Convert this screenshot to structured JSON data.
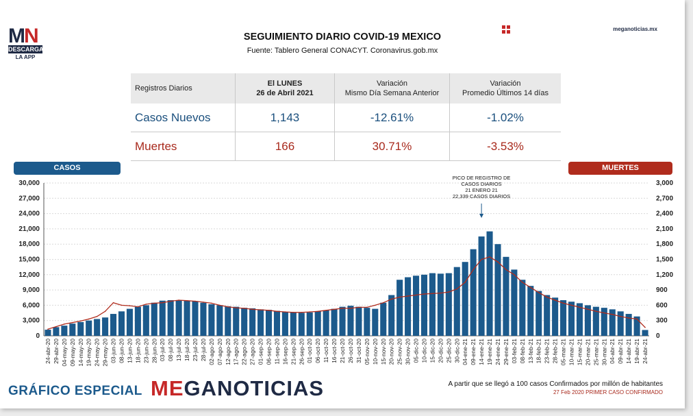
{
  "logo": {
    "mn": "MN",
    "descarga": "DESCARGA",
    "app": "LA APP"
  },
  "header": {
    "title": "SEGUIMIENTO DIARIO COVID-19 MEXICO",
    "subtitle": "Fuente: Tablero General CONACYT. Coronavirus.gob.mx",
    "site": "meganoticias.mx"
  },
  "table": {
    "headers": [
      "Registros Diarios",
      "El LUNES",
      "26 de Abril 2021",
      "Variación",
      "Mismo Día Semana Anterior",
      "Variación",
      "Promedio Últimos 14 días"
    ],
    "rows": [
      {
        "label": "Casos Nuevos",
        "value": "1,143",
        "var_week": "-12.61%",
        "var_14": "-1.02%"
      },
      {
        "label": "Muertes",
        "value": "166",
        "var_week": "30.71%",
        "var_14": "-3.53%"
      }
    ]
  },
  "chart_data": {
    "type": "bar",
    "legend_left": "CASOS",
    "legend_right": "MUERTES",
    "ylim_left": [
      0,
      30000
    ],
    "ylim_right": [
      0,
      3000
    ],
    "yticks_left": [
      "0",
      "3,000",
      "6,000",
      "9,000",
      "12,000",
      "15,000",
      "18,000",
      "21,000",
      "24,000",
      "27,000",
      "30,000"
    ],
    "yticks_right": [
      "0",
      "300",
      "600",
      "900",
      "1,200",
      "1,500",
      "1,800",
      "2,100",
      "2,400",
      "2,700",
      "3,000"
    ],
    "x_labels": [
      "24-abr-20",
      "29-abr-20",
      "04-may-20",
      "09-may-20",
      "14-may-20",
      "19-may-20",
      "24-may-20",
      "29-may-20",
      "03-jun-20",
      "08-jun-20",
      "13-jun-20",
      "18-jun-20",
      "23-jun-20",
      "28-jun-20",
      "03-jul-20",
      "08-jul-20",
      "13-jul-20",
      "18-jul-20",
      "23-jul-20",
      "28-jul-20",
      "02-ago-20",
      "07-ago-20",
      "12-ago-20",
      "17-ago-20",
      "22-ago-20",
      "27-ago-20",
      "01-sep-20",
      "06-sep-20",
      "11-sep-20",
      "16-sep-20",
      "21-sep-20",
      "26-sep-20",
      "01-oct-20",
      "06-oct-20",
      "11-oct-20",
      "16-oct-20",
      "21-oct-20",
      "26-oct-20",
      "31-oct-20",
      "05-nov-20",
      "10-nov-20",
      "15-nov-20",
      "20-nov-20",
      "25-nov-20",
      "30-nov-20",
      "05-dic-20",
      "10-dic-20",
      "15-dic-20",
      "20-dic-20",
      "25-dic-20",
      "30-dic-20",
      "04-ene-21",
      "09-ene-21",
      "14-ene-21",
      "19-ene-21",
      "24-ene-21",
      "29-ene-21",
      "03-feb-21",
      "08-feb-21",
      "13-feb-21",
      "18-feb-21",
      "23-feb-21",
      "28-feb-21",
      "05-mar-21",
      "10-mar-21",
      "15-mar-21",
      "20-mar-21",
      "25-mar-21",
      "30-mar-21",
      "04-abr-21",
      "09-abr-21",
      "14-abr-21",
      "19-abr-21",
      "24-abr-21"
    ],
    "series": [
      {
        "name": "CASOS",
        "axis": "left",
        "color": "#1c5a8c",
        "values": [
          1200,
          1700,
          2000,
          2400,
          2700,
          3000,
          3300,
          3600,
          4300,
          4800,
          5300,
          5700,
          6000,
          6500,
          6900,
          7000,
          7000,
          6900,
          6800,
          6500,
          6200,
          6000,
          5800,
          5700,
          5500,
          5400,
          5200,
          5100,
          4900,
          4700,
          4600,
          4500,
          4600,
          4800,
          5000,
          5300,
          5700,
          5900,
          5700,
          5500,
          5300,
          6500,
          8000,
          11000,
          11500,
          11800,
          12000,
          12300,
          12200,
          12300,
          13500,
          14500,
          17000,
          19500,
          20500,
          18000,
          15500,
          13000,
          11000,
          9800,
          8800,
          8000,
          7500,
          7000,
          6700,
          6400,
          6000,
          5700,
          5500,
          5200,
          4800,
          4300,
          3800,
          1143
        ]
      },
      {
        "name": "MUERTES",
        "axis": "right",
        "color": "#b02c1d",
        "values": [
          130,
          180,
          230,
          260,
          290,
          330,
          380,
          480,
          650,
          600,
          590,
          570,
          620,
          640,
          650,
          680,
          700,
          690,
          680,
          660,
          640,
          600,
          570,
          550,
          540,
          520,
          510,
          500,
          480,
          470,
          460,
          460,
          470,
          480,
          500,
          520,
          540,
          540,
          560,
          560,
          600,
          650,
          720,
          760,
          780,
          800,
          820,
          830,
          840,
          860,
          920,
          1050,
          1300,
          1500,
          1550,
          1450,
          1300,
          1200,
          1050,
          950,
          850,
          760,
          700,
          640,
          600,
          560,
          520,
          480,
          450,
          420,
          380,
          350,
          330,
          166
        ]
      }
    ],
    "annotation": [
      "PICO DE REGISTRO DE",
      "CASOS DIARIOS",
      "21 ENERO 21",
      "22,339 CASOS DIARIOS"
    ]
  },
  "footer": {
    "special": "GRÁFICO ESPECIAL",
    "brand_a": "ME",
    "brand_b": "GA",
    "brand_c": "NOTICIAS",
    "note1": "A partir que se llegó a 100 casos Confirmados por millón de habitantes",
    "note2": "27 Feb 2020 PRIMER CASO CONFIRMADO"
  }
}
